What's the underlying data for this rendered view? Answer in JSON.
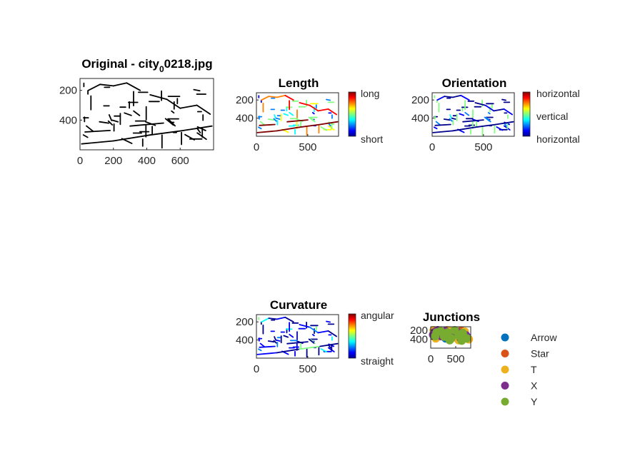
{
  "colors": {
    "edge": "#000000",
    "jet": [
      "#00008f",
      "#0000ff",
      "#0080ff",
      "#00ffff",
      "#80ff80",
      "#ffff00",
      "#ff8000",
      "#ff0000",
      "#800000"
    ]
  },
  "chart_data": [
    {
      "type": "image",
      "id": "original",
      "title_main": "Original - city",
      "title_sub": "0",
      "title_rest": "0218.jpg",
      "xlim": [
        0,
        800
      ],
      "ylim": [
        600,
        120
      ],
      "xticks": [
        0,
        200,
        400,
        600
      ],
      "yticks": [
        200,
        400
      ],
      "xticklabels": [
        "0",
        "200",
        "400",
        "600"
      ],
      "yticklabels": [
        "200",
        "400"
      ]
    },
    {
      "type": "image",
      "id": "length",
      "title": "Length",
      "xlim": [
        0,
        800
      ],
      "ylim": [
        600,
        120
      ],
      "xticks": [
        0,
        500
      ],
      "yticks": [
        200,
        400
      ],
      "xticklabels": [
        "0",
        "500"
      ],
      "yticklabels": [
        "200",
        "400"
      ],
      "colorbar": {
        "top": "long",
        "bottom": "short"
      }
    },
    {
      "type": "image",
      "id": "orientation",
      "title": "Orientation",
      "xlim": [
        0,
        800
      ],
      "ylim": [
        600,
        120
      ],
      "xticks": [
        0,
        500
      ],
      "yticks": [
        200,
        400
      ],
      "xticklabels": [
        "0",
        "500"
      ],
      "yticklabels": [
        "200",
        "400"
      ],
      "colorbar": {
        "top": "horizontal",
        "middle": "vertical",
        "bottom": "horizontal"
      }
    },
    {
      "type": "image",
      "id": "curvature",
      "title": "Curvature",
      "xlim": [
        0,
        800
      ],
      "ylim": [
        600,
        120
      ],
      "xticks": [
        0,
        500
      ],
      "yticks": [
        200,
        400
      ],
      "xticklabels": [
        "0",
        "500"
      ],
      "yticklabels": [
        "200",
        "400"
      ],
      "colorbar": {
        "top": "angular",
        "bottom": "straight"
      }
    },
    {
      "type": "scatter",
      "id": "junctions",
      "title": "Junctions",
      "xlim": [
        0,
        800
      ],
      "ylim": [
        600,
        120
      ],
      "xticks": [
        0,
        500
      ],
      "yticks": [
        200,
        400
      ],
      "xticklabels": [
        "0",
        "500"
      ],
      "yticklabels": [
        "200",
        "400"
      ],
      "legend_position": "outside-right",
      "series": [
        {
          "name": "Arrow",
          "color": "#0072bd",
          "points": [
            [
              180,
              210
            ],
            [
              520,
              300
            ],
            [
              650,
              250
            ],
            [
              300,
              380
            ],
            [
              720,
              340
            ]
          ]
        },
        {
          "name": "Star",
          "color": "#d95319",
          "points": [
            [
              240,
              240
            ],
            [
              460,
              330
            ],
            [
              610,
              210
            ]
          ]
        },
        {
          "name": "T",
          "color": "#edb120",
          "points": [
            [
              60,
              200
            ],
            [
              150,
              300
            ],
            [
              260,
              260
            ],
            [
              350,
              350
            ],
            [
              420,
              220
            ],
            [
              500,
              360
            ],
            [
              600,
              300
            ],
            [
              680,
              230
            ],
            [
              760,
              400
            ],
            [
              100,
              380
            ],
            [
              330,
              200
            ],
            [
              560,
              420
            ]
          ]
        },
        {
          "name": "X",
          "color": "#7e2f8e",
          "points": [
            [
              80,
              240
            ],
            [
              140,
              200
            ],
            [
              210,
              330
            ],
            [
              290,
              220
            ],
            [
              380,
              300
            ],
            [
              440,
              260
            ],
            [
              520,
              230
            ],
            [
              600,
              380
            ],
            [
              700,
              310
            ],
            [
              50,
              300
            ]
          ]
        },
        {
          "name": "Y",
          "color": "#77ac30",
          "points": [
            [
              120,
              250
            ],
            [
              200,
              220
            ],
            [
              270,
              340
            ],
            [
              340,
              250
            ],
            [
              410,
              380
            ],
            [
              480,
              200
            ],
            [
              560,
              320
            ],
            [
              640,
              260
            ],
            [
              720,
              380
            ],
            [
              90,
              330
            ],
            [
              380,
              420
            ],
            [
              620,
              430
            ]
          ]
        }
      ]
    }
  ]
}
